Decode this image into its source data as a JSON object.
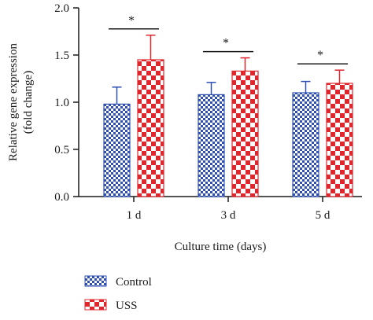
{
  "chart_data": {
    "type": "bar",
    "categories": [
      "1 d",
      "3 d",
      "5 d"
    ],
    "series": [
      {
        "name": "Control",
        "values": [
          0.98,
          1.08,
          1.1
        ],
        "errors": [
          0.18,
          0.13,
          0.12
        ],
        "color": "#2f4fb3",
        "pattern": "fine checkerboard"
      },
      {
        "name": "USS",
        "values": [
          1.45,
          1.33,
          1.2
        ],
        "errors": [
          0.26,
          0.14,
          0.14
        ],
        "color": "#e0262d",
        "pattern": "coarse checkerboard"
      }
    ],
    "title": "",
    "xlabel": "Culture time (days)",
    "ylabel_line1": "Relative gene expression",
    "ylabel_line2": "(fold change)",
    "ylim": [
      0.0,
      2.0
    ],
    "yticks": [
      "0.0",
      "0.5",
      "1.0",
      "1.5",
      "2.0"
    ],
    "significance": [
      "*",
      "*",
      "*"
    ],
    "grid": false,
    "legend": "bottom-left"
  }
}
